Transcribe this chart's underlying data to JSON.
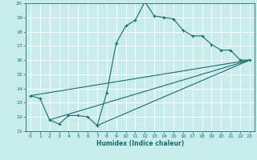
{
  "title": "",
  "xlabel": "Humidex (Indice chaleur)",
  "bg_color": "#c8ecec",
  "grid_color": "#ffffff",
  "line_color": "#1a6b6b",
  "xlim": [
    -0.5,
    23.5
  ],
  "ylim": [
    11,
    20
  ],
  "xticks": [
    0,
    1,
    2,
    3,
    4,
    5,
    6,
    7,
    8,
    9,
    10,
    11,
    12,
    13,
    14,
    15,
    16,
    17,
    18,
    19,
    20,
    21,
    22,
    23
  ],
  "yticks": [
    11,
    12,
    13,
    14,
    15,
    16,
    17,
    18,
    19,
    20
  ],
  "series": [
    [
      0,
      13.5
    ],
    [
      1,
      13.3
    ],
    [
      2,
      11.8
    ],
    [
      3,
      11.5
    ],
    [
      4,
      12.1
    ],
    [
      5,
      12.1
    ],
    [
      6,
      12.0
    ],
    [
      7,
      11.4
    ],
    [
      8,
      13.7
    ],
    [
      9,
      17.2
    ],
    [
      10,
      18.4
    ],
    [
      11,
      18.8
    ],
    [
      12,
      20.1
    ],
    [
      13,
      19.1
    ],
    [
      14,
      19.0
    ],
    [
      15,
      18.9
    ],
    [
      16,
      18.1
    ],
    [
      17,
      17.7
    ],
    [
      18,
      17.7
    ],
    [
      19,
      17.1
    ],
    [
      20,
      16.7
    ],
    [
      21,
      16.7
    ],
    [
      22,
      16.0
    ],
    [
      23,
      16.0
    ]
  ],
  "straight_lines": [
    [
      [
        0,
        13.5
      ],
      [
        23,
        16.0
      ]
    ],
    [
      [
        2,
        11.8
      ],
      [
        23,
        16.0
      ]
    ],
    [
      [
        7,
        11.4
      ],
      [
        23,
        16.0
      ]
    ]
  ]
}
